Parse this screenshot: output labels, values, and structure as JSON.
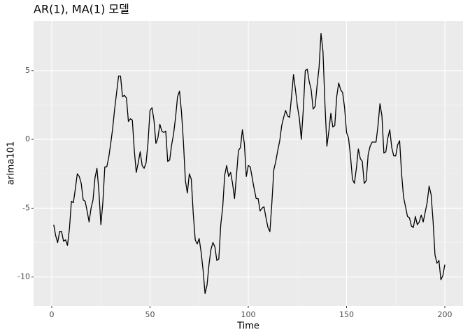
{
  "chart_data": {
    "type": "line",
    "title": "AR(1), MA(1) 모델",
    "x_label": "Time",
    "y_label": "arima101",
    "x": [
      1,
      2,
      3,
      4,
      5,
      6,
      7,
      8,
      9,
      10,
      11,
      12,
      13,
      14,
      15,
      16,
      17,
      18,
      19,
      20,
      21,
      22,
      23,
      24,
      25,
      26,
      27,
      28,
      29,
      30,
      31,
      32,
      33,
      34,
      35,
      36,
      37,
      38,
      39,
      40,
      41,
      42,
      43,
      44,
      45,
      46,
      47,
      48,
      49,
      50,
      51,
      52,
      53,
      54,
      55,
      56,
      57,
      58,
      59,
      60,
      61,
      62,
      63,
      64,
      65,
      66,
      67,
      68,
      69,
      70,
      71,
      72,
      73,
      74,
      75,
      76,
      77,
      78,
      79,
      80,
      81,
      82,
      83,
      84,
      85,
      86,
      87,
      88,
      89,
      90,
      91,
      92,
      93,
      94,
      95,
      96,
      97,
      98,
      99,
      100,
      101,
      102,
      103,
      104,
      105,
      106,
      107,
      108,
      109,
      110,
      111,
      112,
      113,
      114,
      115,
      116,
      117,
      118,
      119,
      120,
      121,
      122,
      123,
      124,
      125,
      126,
      127,
      128,
      129,
      130,
      131,
      132,
      133,
      134,
      135,
      136,
      137,
      138,
      139,
      140,
      141,
      142,
      143,
      144,
      145,
      146,
      147,
      148,
      149,
      150,
      151,
      152,
      153,
      154,
      155,
      156,
      157,
      158,
      159,
      160,
      161,
      162,
      163,
      164,
      165,
      166,
      167,
      168,
      169,
      170,
      171,
      172,
      173,
      174,
      175,
      176,
      177,
      178,
      179,
      180,
      181,
      182,
      183,
      184,
      185,
      186,
      187,
      188,
      189,
      190,
      191,
      192,
      193,
      194,
      195,
      196,
      197,
      198,
      199,
      200
    ],
    "values": [
      -6.2,
      -7.0,
      -7.5,
      -6.7,
      -6.7,
      -7.4,
      -7.3,
      -7.7,
      -6.5,
      -4.5,
      -4.6,
      -3.6,
      -2.5,
      -2.7,
      -3.2,
      -4.4,
      -4.5,
      -5.2,
      -6.0,
      -5.0,
      -4.4,
      -2.8,
      -2.1,
      -3.8,
      -6.2,
      -4.6,
      -2.0,
      -2.0,
      -1.3,
      -0.3,
      0.8,
      2.2,
      3.4,
      4.6,
      4.6,
      3.1,
      3.2,
      3.0,
      1.3,
      1.5,
      1.4,
      -0.8,
      -2.4,
      -1.7,
      -0.9,
      -1.9,
      -2.1,
      -1.7,
      -0.2,
      2.1,
      2.3,
      1.4,
      -0.3,
      0.1,
      1.1,
      0.6,
      0.5,
      0.6,
      -1.6,
      -1.5,
      -0.4,
      0.4,
      1.6,
      3.1,
      3.5,
      2.0,
      -0.2,
      -3.0,
      -3.9,
      -2.5,
      -2.9,
      -5.4,
      -7.3,
      -7.6,
      -7.2,
      -8.2,
      -9.5,
      -11.2,
      -10.6,
      -9.1,
      -8.0,
      -7.5,
      -7.8,
      -8.8,
      -8.7,
      -6.2,
      -4.9,
      -2.6,
      -1.9,
      -2.7,
      -2.4,
      -3.2,
      -4.3,
      -2.6,
      -0.8,
      -0.6,
      0.7,
      -0.3,
      -2.7,
      -1.9,
      -2.0,
      -2.8,
      -3.6,
      -4.3,
      -4.3,
      -5.2,
      -5.0,
      -4.9,
      -5.7,
      -6.4,
      -6.7,
      -4.6,
      -2.2,
      -1.6,
      -0.8,
      -0.1,
      1.0,
      1.6,
      2.1,
      1.7,
      1.6,
      3.1,
      4.7,
      3.6,
      2.4,
      1.5,
      0.0,
      2.2,
      5.0,
      5.1,
      4.2,
      3.6,
      2.2,
      2.4,
      3.9,
      5.2,
      7.7,
      6.4,
      2.6,
      -0.5,
      0.6,
      1.9,
      0.9,
      1.0,
      3.1,
      4.1,
      3.6,
      3.4,
      2.3,
      0.5,
      0.1,
      -1.2,
      -2.9,
      -3.2,
      -2.1,
      -0.7,
      -1.4,
      -1.6,
      -3.2,
      -3.0,
      -1.1,
      -0.5,
      -0.2,
      -0.2,
      -0.2,
      1.0,
      2.6,
      1.7,
      -1.0,
      -0.9,
      0.1,
      0.7,
      -0.6,
      -1.2,
      -1.2,
      -0.4,
      -0.1,
      -2.5,
      -4.2,
      -4.9,
      -5.6,
      -5.7,
      -6.3,
      -6.4,
      -5.6,
      -6.2,
      -6.0,
      -5.5,
      -6.0,
      -5.3,
      -4.6,
      -3.4,
      -4.0,
      -5.9,
      -8.4,
      -9.0,
      -8.8,
      -10.2,
      -9.9,
      -9.1
    ],
    "color": "#000000",
    "xlim": [
      -9.25,
      209.25
    ],
    "xticks": [
      0,
      50,
      100,
      150,
      200
    ],
    "ylim": [
      -12.1,
      8.6
    ],
    "yticks": [
      -10,
      -5,
      0,
      5
    ],
    "grid": true
  }
}
